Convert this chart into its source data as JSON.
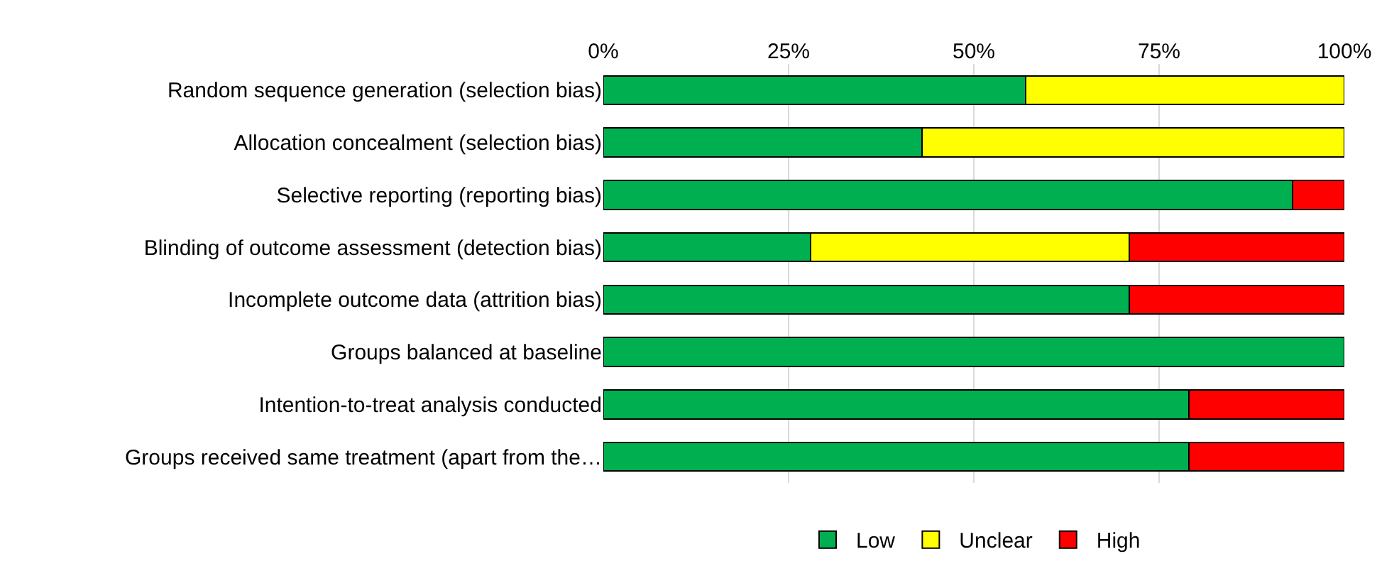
{
  "chart_data": {
    "type": "bar",
    "orientation": "horizontal",
    "stacked": true,
    "categories": [
      "Random sequence generation (selection bias)",
      "Allocation concealment (selection bias)",
      "Selective reporting (reporting bias)",
      "Blinding of outcome assessment (detection bias)",
      "Incomplete outcome data (attrition bias)",
      "Groups balanced at baseline",
      "Intention-to-treat analysis conducted",
      "Groups received same treatment (apart from the…"
    ],
    "series": [
      {
        "name": "Low",
        "color": "#00b050",
        "values": [
          57,
          43,
          93,
          28,
          71,
          100,
          79,
          79
        ]
      },
      {
        "name": "Unclear",
        "color": "#ffff00",
        "values": [
          43,
          57,
          null,
          43,
          null,
          null,
          null,
          null
        ]
      },
      {
        "name": "High",
        "color": "#ff0000",
        "values": [
          null,
          null,
          7,
          29,
          29,
          null,
          21,
          21
        ]
      }
    ],
    "xlim": [
      0,
      100
    ],
    "xticks": [
      {
        "value": 0,
        "label": "0%"
      },
      {
        "value": 25,
        "label": "25%"
      },
      {
        "value": 50,
        "label": "50%"
      },
      {
        "value": 75,
        "label": "75%"
      },
      {
        "value": 100,
        "label": "100%"
      }
    ],
    "grid": "x",
    "legend": "bottom"
  }
}
